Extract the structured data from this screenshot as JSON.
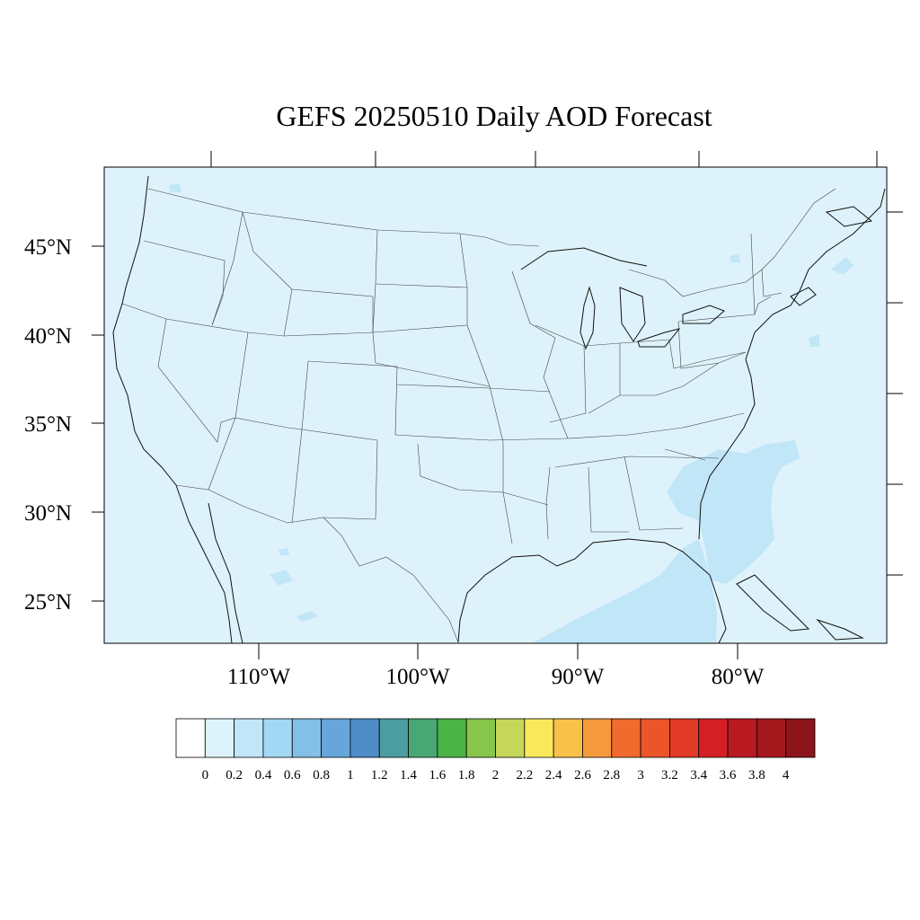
{
  "title": "GEFS 20250510 Daily AOD Forecast",
  "latitude_labels": [
    "45°N",
    "40°N",
    "35°N",
    "30°N",
    "25°N"
  ],
  "longitude_labels": [
    "110°W",
    "100°W",
    "90°W",
    "80°W"
  ],
  "colors": {
    "background_aod": "#def2fb",
    "elevated_aod": "#c0e6f8",
    "frame": "#000000"
  },
  "colorbar": {
    "labels": [
      "0",
      "0.2",
      "0.4",
      "0.6",
      "0.8",
      "1",
      "1.2",
      "1.4",
      "1.6",
      "1.8",
      "2",
      "2.2",
      "2.4",
      "2.6",
      "2.8",
      "3",
      "3.2",
      "3.4",
      "3.6",
      "3.8",
      "4"
    ],
    "colors": [
      "#ffffff",
      "#def2fb",
      "#c0e6f8",
      "#a2d8f3",
      "#84bfe6",
      "#67a6db",
      "#4e8cc8",
      "#4c9da0",
      "#48a874",
      "#4ab446",
      "#88c54b",
      "#c5d65a",
      "#f9e85c",
      "#f8c14a",
      "#f59a3d",
      "#f06b2d",
      "#ec542a",
      "#e13b27",
      "#d41f26",
      "#b91a22",
      "#a3171d",
      "#8c151b"
    ]
  }
}
